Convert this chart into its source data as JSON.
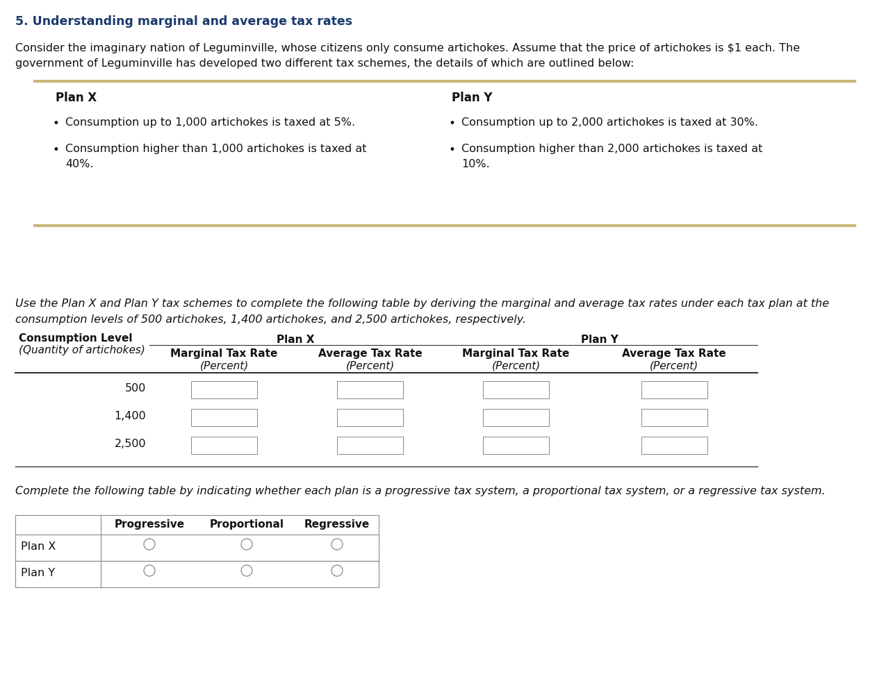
{
  "title": "5. Understanding marginal and average tax rates",
  "title_color": "#1a3a6e",
  "bg_color": "#ffffff",
  "intro_line1": "Consider the imaginary nation of Leguminville, whose citizens only consume artichokes. Assume that the price of artichokes is $1 each. The",
  "intro_line2": "government of Leguminville has developed two different tax schemes, the details of which are outlined below:",
  "plan_box_border_color": "#c8b87a",
  "plan_x_title": "Plan X",
  "plan_x_bullet1": "Consumption up to 1,000 artichokes is taxed at 5%.",
  "plan_x_bullet2a": "Consumption higher than 1,000 artichokes is taxed at",
  "plan_x_bullet2b": "40%.",
  "plan_y_title": "Plan Y",
  "plan_y_bullet1": "Consumption up to 2,000 artichokes is taxed at 30%.",
  "plan_y_bullet2a": "Consumption higher than 2,000 artichokes is taxed at",
  "plan_y_bullet2b": "10%.",
  "italic_instruction1": "Use the Plan X and Plan Y tax schemes to complete the following table by deriving the marginal and average tax rates under each tax plan at the",
  "italic_instruction2": "consumption levels of 500 artichokes, 1,400 artichokes, and 2,500 artichokes, respectively.",
  "table1_rows": [
    "500",
    "1,400",
    "2,500"
  ],
  "italic_instruction3": "Complete the following table by indicating whether each plan is a progressive tax system, a proportional tax system, or a regressive tax system.",
  "table2_rows": [
    "Plan X",
    "Plan Y"
  ],
  "table2_headers": [
    "Progressive",
    "Proportional",
    "Regressive"
  ]
}
